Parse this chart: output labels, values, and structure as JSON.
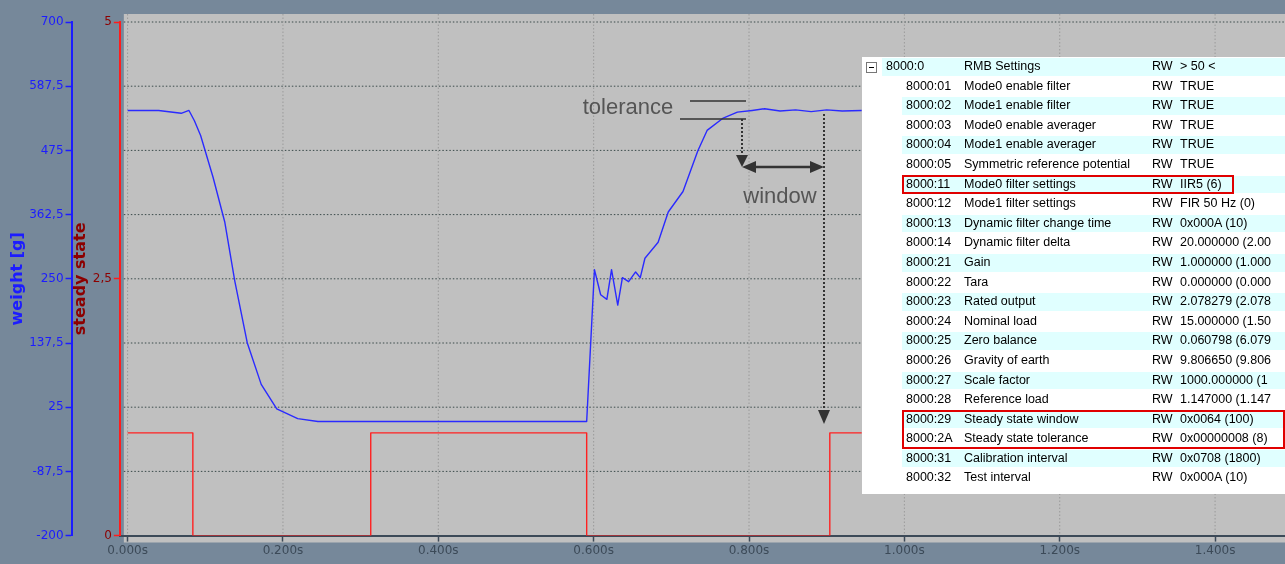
{
  "chart_data": {
    "type": "line",
    "ylabel": "weight [g]",
    "y2label": "steady state",
    "xlim": [
      -0.01,
      1.49
    ],
    "xticks": [
      {
        "value": 0,
        "label": "0.000s"
      },
      {
        "value": 0.2,
        "label": "0.200s"
      },
      {
        "value": 0.4,
        "label": "0.400s"
      },
      {
        "value": 0.6,
        "label": "0.600s"
      },
      {
        "value": 0.8,
        "label": "0.800s"
      },
      {
        "value": 1.0,
        "label": "1.000s"
      },
      {
        "value": 1.2,
        "label": "1.200s"
      },
      {
        "value": 1.4,
        "label": "1.400s"
      }
    ],
    "ylim": [
      -200,
      700
    ],
    "yticks": [
      -200,
      {
        "value": -87.5,
        "label": "-87,5"
      },
      25,
      {
        "value": 137.5,
        "label": "137,5"
      },
      250,
      {
        "value": 362.5,
        "label": "362,5"
      },
      475,
      {
        "value": 587.5,
        "label": "587,5"
      },
      700
    ],
    "y2lim": [
      0,
      5
    ],
    "y2ticks": [
      0,
      {
        "value": 2.5,
        "label": "2,5"
      },
      5
    ],
    "grid": true,
    "legend": false,
    "series": [
      {
        "color": "#2a2aff",
        "axis": "y",
        "x": [
          0,
          0.04,
          0.069,
          0.079,
          0.086,
          0.094,
          0.11,
          0.125,
          0.138,
          0.154,
          0.172,
          0.192,
          0.219,
          0.245,
          0.3,
          0.4,
          0.5,
          0.591,
          0.601,
          0.609,
          0.617,
          0.623,
          0.631,
          0.637,
          0.645,
          0.654,
          0.66,
          0.666,
          0.683,
          0.696,
          0.715,
          0.734,
          0.746,
          0.766,
          0.785,
          0.804,
          0.82,
          0.84,
          0.86,
          0.88,
          0.9,
          0.92,
          0.945
        ],
        "values": [
          545,
          545,
          540,
          545,
          527,
          501,
          428,
          350,
          246,
          138,
          65,
          22,
          5,
          0,
          0,
          0,
          0,
          0,
          266,
          222,
          214,
          266,
          204,
          252,
          245,
          262,
          252,
          286,
          314,
          367,
          403,
          474,
          510,
          531,
          542,
          545,
          548,
          544,
          546,
          543,
          546,
          544,
          545
        ]
      },
      {
        "type": "step",
        "color": "#ff2020",
        "axis": "y2",
        "x": [
          0,
          0.084,
          0.313,
          0.591,
          0.904,
          0.945
        ],
        "values": [
          1,
          0,
          1,
          0,
          1,
          1
        ]
      }
    ],
    "annotations": [
      "tolerance",
      "window",
      "8000:0",
      "RMB Settings",
      "RW",
      "> 50 <",
      "8000:01",
      "Mode0 enable filter",
      "RW",
      "TRUE",
      "8000:02",
      "Mode1 enable filter",
      "RW",
      "TRUE",
      "8000:03",
      "Mode0 enable averager",
      "RW",
      "TRUE",
      "8000:04",
      "Mode1 enable averager",
      "RW",
      "TRUE",
      "8000:05",
      "Symmetric reference potential",
      "RW",
      "TRUE",
      "8000:11",
      "Mode0 filter settings",
      "RW",
      "IIR5 (6)",
      "8000:12",
      "Mode1 filter settings",
      "RW",
      "FIR 50 Hz (0)",
      "8000:13",
      "Dynamic filter change time",
      "RW",
      "0x000A (10)",
      "8000:14",
      "Dynamic filter delta",
      "RW",
      "20.000000  (2.00",
      "8000:21",
      "Gain",
      "RW",
      "1.000000  (1.000",
      "8000:22",
      "Tara",
      "RW",
      "0.000000  (0.000",
      "8000:23",
      "Rated output",
      "RW",
      "2.078279  (2.078",
      "8000:24",
      "Nominal load",
      "RW",
      "15.000000  (1.50",
      "8000:25",
      "Zero balance",
      "RW",
      "0.060798  (6.079",
      "8000:26",
      "Gravity of earth",
      "RW",
      "9.806650  (9.806",
      "8000:27",
      "Scale factor",
      "RW",
      "1000.000000  (1",
      "8000:28",
      "Reference load",
      "RW",
      "1.147000  (1.147",
      "8000:29",
      "Steady state window",
      "RW",
      "0x0064 (100)",
      "8000:2A",
      "Steady state tolerance",
      "RW",
      "0x00000008 (8)",
      "8000:31",
      "Calibration interval",
      "RW",
      "0x0708 (1800)",
      "8000:32",
      "Test interval",
      "RW",
      "0x000A (10)"
    ]
  }
}
